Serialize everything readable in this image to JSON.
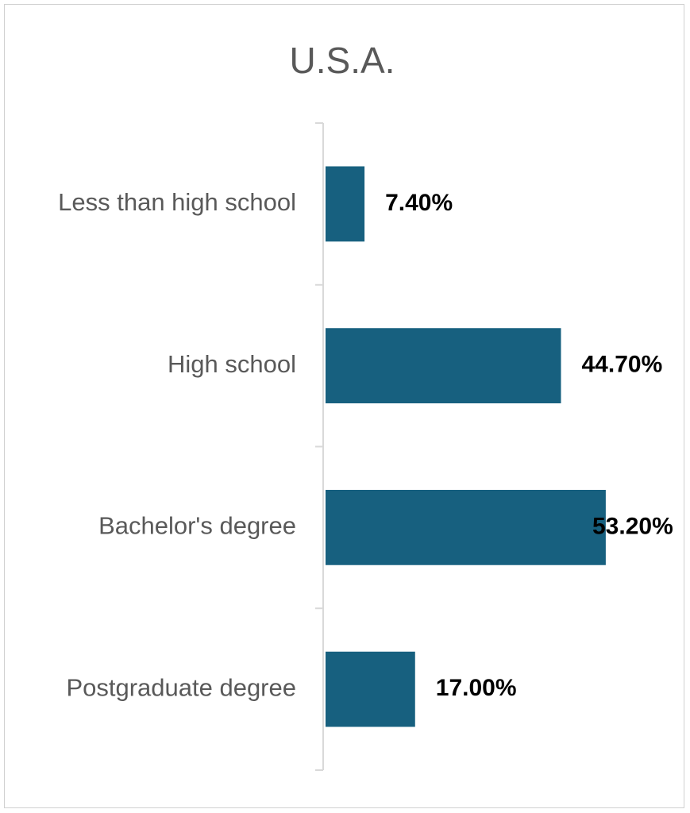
{
  "chart_data": {
    "type": "bar",
    "orientation": "horizontal",
    "title": "U.S.A.",
    "categories": [
      "Less than high school",
      "High school",
      "Bachelor's degree",
      "Postgraduate degree"
    ],
    "values": [
      7.4,
      44.7,
      53.2,
      17.0
    ],
    "data_labels": [
      "7.40%",
      "44.70%",
      "53.20%",
      "17.00%"
    ],
    "xlabel": "",
    "ylabel": "",
    "xlim": [
      0,
      60
    ],
    "grid": false,
    "legend": "none",
    "bar_color": "#17607f"
  }
}
